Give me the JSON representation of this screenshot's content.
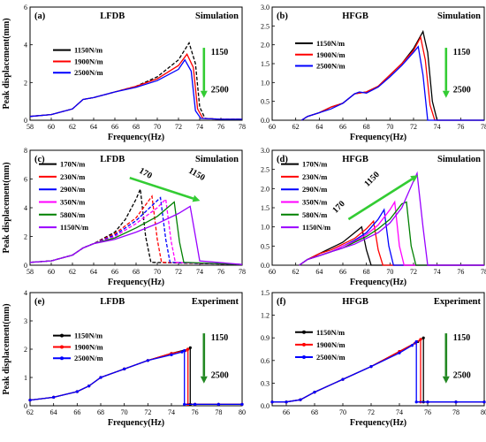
{
  "chart_data": [
    {
      "type": "line",
      "panel": "(a)",
      "title": "LFDB",
      "subtitle": "Simulation",
      "xlabel": "Frequency(Hz)",
      "ylabel": "Peak displacement(mm)",
      "xlim": [
        58,
        78
      ],
      "ylim": [
        0,
        6
      ],
      "xticks": [
        "58",
        "60",
        "62",
        "64",
        "66",
        "68",
        "70",
        "72",
        "74",
        "76",
        "78"
      ],
      "yticks": [
        "0",
        "2",
        "4",
        "6"
      ],
      "legend_position": "left",
      "arrow": {
        "from": "1150",
        "to": "2500",
        "color": "#33cc33",
        "direction": "down"
      },
      "series": [
        {
          "name": "1150N/m",
          "color": "#000000",
          "dash": "4,2",
          "x": [
            58,
            60,
            62,
            63,
            64,
            66,
            68,
            70,
            72,
            73,
            73.6,
            74,
            74.5,
            76,
            78
          ],
          "y": [
            0.2,
            0.3,
            0.6,
            1.1,
            1.2,
            1.5,
            1.8,
            2.3,
            3.2,
            4.1,
            3.0,
            0.7,
            0.1,
            0.05,
            0.05
          ]
        },
        {
          "name": "1900N/m",
          "color": "#ff0000",
          "dash": "",
          "x": [
            58,
            60,
            62,
            63,
            64,
            66,
            68,
            70,
            72,
            72.8,
            73.4,
            73.8,
            74.3,
            76,
            78
          ],
          "y": [
            0.2,
            0.3,
            0.6,
            1.1,
            1.2,
            1.5,
            1.8,
            2.2,
            2.9,
            3.5,
            2.8,
            0.6,
            0.1,
            0.05,
            0.05
          ]
        },
        {
          "name": "2500N/m",
          "color": "#0000ff",
          "dash": "",
          "x": [
            58,
            60,
            62,
            63,
            64,
            66,
            68,
            70,
            72,
            72.6,
            73.2,
            73.6,
            74.1,
            76,
            78
          ],
          "y": [
            0.2,
            0.3,
            0.6,
            1.1,
            1.2,
            1.5,
            1.75,
            2.1,
            2.7,
            3.2,
            2.6,
            0.5,
            0.1,
            0.05,
            0.05
          ]
        }
      ]
    },
    {
      "type": "line",
      "panel": "(b)",
      "title": "HFGB",
      "subtitle": "Simulation",
      "xlabel": "Frequency(Hz)",
      "ylabel": "",
      "xlim": [
        60,
        78
      ],
      "ylim": [
        0,
        3
      ],
      "xticks": [
        "60",
        "62",
        "64",
        "66",
        "68",
        "70",
        "72",
        "74",
        "76",
        "78"
      ],
      "yticks": [
        "0.0",
        "0.5",
        "1.0",
        "1.5",
        "2.0",
        "2.5",
        "3.0"
      ],
      "legend_position": "left",
      "arrow": {
        "from": "1150",
        "to": "2500",
        "color": "#33cc33",
        "direction": "down"
      },
      "series": [
        {
          "name": "1150N/m",
          "color": "#000000",
          "dash": "",
          "x": [
            62.5,
            63,
            64,
            65,
            66,
            67,
            68,
            69,
            70,
            71,
            72,
            72.8,
            73.2,
            73.6,
            74,
            78
          ],
          "y": [
            0,
            0.1,
            0.2,
            0.35,
            0.45,
            0.7,
            0.75,
            0.9,
            1.2,
            1.5,
            1.9,
            2.35,
            1.8,
            0.5,
            0,
            0
          ]
        },
        {
          "name": "1900N/m",
          "color": "#ff0000",
          "dash": "",
          "x": [
            62.5,
            63,
            64,
            65,
            66,
            67,
            68,
            69,
            70,
            71,
            72,
            72.6,
            73,
            73.4,
            73.8,
            78
          ],
          "y": [
            0,
            0.1,
            0.2,
            0.35,
            0.45,
            0.7,
            0.75,
            0.9,
            1.2,
            1.5,
            1.85,
            2.2,
            1.6,
            0.4,
            0,
            0
          ]
        },
        {
          "name": "2500N/m",
          "color": "#0000ff",
          "dash": "",
          "x": [
            62.5,
            63,
            64,
            65,
            66,
            67,
            67.4,
            68,
            69,
            70,
            71,
            72,
            72.4,
            72.8,
            73.2,
            78
          ],
          "y": [
            0,
            0.1,
            0.2,
            0.3,
            0.45,
            0.7,
            0.75,
            0.72,
            0.88,
            1.15,
            1.45,
            1.8,
            1.95,
            1.2,
            0,
            0
          ]
        }
      ]
    },
    {
      "type": "line",
      "panel": "(c)",
      "title": "LFDB",
      "subtitle": "Simulation",
      "xlabel": "Frequency(Hz)",
      "ylabel": "Peak displacement(mm)",
      "xlim": [
        58,
        78
      ],
      "ylim": [
        0,
        8
      ],
      "xticks": [
        "58",
        "60",
        "62",
        "64",
        "66",
        "68",
        "70",
        "72",
        "74",
        "76",
        "78"
      ],
      "yticks": [
        "0",
        "2",
        "4",
        "6",
        "8"
      ],
      "legend_position": "left",
      "arrow": {
        "from": "170",
        "to": "1150",
        "color": "#33cc33",
        "direction": "right"
      },
      "series": [
        {
          "name": "170N/m",
          "color": "#000000",
          "dash": "4,2",
          "x": [
            58,
            60,
            62,
            63,
            64,
            66,
            67,
            68,
            68.4,
            68.9,
            69.4,
            78
          ],
          "y": [
            0.2,
            0.3,
            0.7,
            1.2,
            1.5,
            2.3,
            3.2,
            4.6,
            5.3,
            2.0,
            0.2,
            0.05
          ]
        },
        {
          "name": "230N/m",
          "color": "#ff0000",
          "dash": "4,2",
          "x": [
            58,
            60,
            62,
            63,
            64,
            66,
            68,
            69,
            69.5,
            70,
            70.4,
            78
          ],
          "y": [
            0.2,
            0.3,
            0.7,
            1.2,
            1.5,
            2.2,
            3.3,
            4.3,
            4.8,
            1.8,
            0.2,
            0.05
          ]
        },
        {
          "name": "290N/m",
          "color": "#0000ff",
          "dash": "4,2",
          "x": [
            58,
            60,
            62,
            63,
            64,
            66,
            68,
            70,
            70.3,
            70.8,
            71.2,
            78
          ],
          "y": [
            0.2,
            0.3,
            0.7,
            1.2,
            1.5,
            2.1,
            3.1,
            4.5,
            4.7,
            1.8,
            0.2,
            0.05
          ]
        },
        {
          "name": "350N/m",
          "color": "#ff00ff",
          "dash": "4,2",
          "x": [
            58,
            60,
            62,
            63,
            64,
            66,
            68,
            70,
            70.8,
            71.3,
            71.7,
            78
          ],
          "y": [
            0.2,
            0.3,
            0.7,
            1.2,
            1.5,
            2.0,
            2.9,
            4.0,
            4.6,
            1.7,
            0.2,
            0.05
          ]
        },
        {
          "name": "580N/m",
          "color": "#008000",
          "dash": "",
          "x": [
            58,
            60,
            62,
            63,
            64,
            66,
            68,
            70,
            71.6,
            72.1,
            72.5,
            78
          ],
          "y": [
            0.2,
            0.3,
            0.7,
            1.2,
            1.5,
            1.9,
            2.6,
            3.4,
            4.4,
            1.6,
            0.2,
            0.05
          ]
        },
        {
          "name": "1150N/m",
          "color": "#9900ff",
          "dash": "",
          "x": [
            58,
            60,
            62,
            63,
            64,
            66,
            68,
            70,
            72,
            73.1,
            73.6,
            74,
            78
          ],
          "y": [
            0.2,
            0.3,
            0.7,
            1.2,
            1.5,
            1.8,
            2.3,
            2.9,
            3.6,
            4.1,
            2.0,
            0.3,
            0.05
          ]
        }
      ]
    },
    {
      "type": "line",
      "panel": "(d)",
      "title": "HFGB",
      "subtitle": "Simulation",
      "xlabel": "Frequency(Hz)",
      "ylabel": "",
      "xlim": [
        60,
        78
      ],
      "ylim": [
        0,
        3
      ],
      "xticks": [
        "60",
        "62",
        "64",
        "66",
        "68",
        "70",
        "72",
        "74",
        "76",
        "78"
      ],
      "yticks": [
        "0.0",
        "0.5",
        "1.0",
        "1.5",
        "2.0",
        "2.5",
        "3.0"
      ],
      "legend_position": "left",
      "arrow": {
        "from": "170",
        "to": "1150",
        "color": "#33cc33",
        "direction": "up-right"
      },
      "series": [
        {
          "name": "170N/m",
          "color": "#000000",
          "dash": "",
          "x": [
            62.3,
            63,
            64,
            65,
            66,
            67,
            67.6,
            68,
            68.4,
            78
          ],
          "y": [
            0,
            0.15,
            0.3,
            0.45,
            0.6,
            0.85,
            1.0,
            0.4,
            0,
            0
          ]
        },
        {
          "name": "230N/m",
          "color": "#ff0000",
          "dash": "",
          "x": [
            62.3,
            63,
            64,
            65,
            66,
            67,
            68,
            68.6,
            69,
            69.4,
            78
          ],
          "y": [
            0,
            0.15,
            0.3,
            0.4,
            0.55,
            0.7,
            0.95,
            1.15,
            0.4,
            0,
            0
          ]
        },
        {
          "name": "290N/m",
          "color": "#0000ff",
          "dash": "",
          "x": [
            62.3,
            63,
            64,
            65,
            66,
            67,
            68,
            69,
            69.5,
            69.9,
            70.3,
            78
          ],
          "y": [
            0,
            0.15,
            0.25,
            0.35,
            0.5,
            0.65,
            0.85,
            1.2,
            1.45,
            0.5,
            0,
            0
          ]
        },
        {
          "name": "350N/m",
          "color": "#ff00ff",
          "dash": "",
          "x": [
            62.3,
            63,
            64,
            65,
            66,
            67,
            68,
            69,
            70,
            70.4,
            70.8,
            71.2,
            78
          ],
          "y": [
            0,
            0.15,
            0.25,
            0.35,
            0.5,
            0.62,
            0.8,
            1.05,
            1.45,
            1.65,
            0.5,
            0,
            0
          ]
        },
        {
          "name": "580N/m",
          "color": "#008000",
          "dash": "",
          "x": [
            62.3,
            63,
            64,
            65,
            66,
            67,
            68,
            69,
            70,
            71,
            71.4,
            71.8,
            72.2,
            78
          ],
          "y": [
            0,
            0.15,
            0.25,
            0.35,
            0.45,
            0.6,
            0.75,
            0.95,
            1.2,
            1.6,
            1.65,
            0.5,
            0,
            0
          ]
        },
        {
          "name": "1150N/m",
          "color": "#9900ff",
          "dash": "",
          "x": [
            62.3,
            63,
            64,
            65,
            66,
            67,
            68,
            69,
            70,
            71,
            72,
            72.3,
            72.8,
            73.2,
            78
          ],
          "y": [
            0,
            0.15,
            0.25,
            0.35,
            0.45,
            0.55,
            0.7,
            0.85,
            1.1,
            1.5,
            2.2,
            2.4,
            1.0,
            0,
            0
          ]
        }
      ]
    },
    {
      "type": "line",
      "panel": "(e)",
      "title": "LFDB",
      "subtitle": "Experiment",
      "xlabel": "Frequency(Hz)",
      "ylabel": "Peak displacement(mm)",
      "xlim": [
        62,
        80
      ],
      "ylim": [
        0,
        4
      ],
      "xticks": [
        "62",
        "64",
        "66",
        "68",
        "70",
        "72",
        "74",
        "76",
        "78",
        "80"
      ],
      "yticks": [
        "0",
        "1",
        "2",
        "3",
        "4"
      ],
      "legend_position": "left",
      "arrow": {
        "from": "1150",
        "to": "2500",
        "color": "#228822",
        "direction": "down"
      },
      "series": [
        {
          "name": "1150N/m",
          "color": "#000000",
          "dash": "",
          "markers": true,
          "x": [
            62,
            64,
            66,
            67,
            68,
            70,
            72,
            74,
            75.4,
            75.6,
            75.6,
            76,
            78,
            80
          ],
          "y": [
            0.2,
            0.3,
            0.5,
            0.7,
            1.0,
            1.3,
            1.6,
            1.85,
            2.0,
            2.05,
            0.05,
            0.05,
            0.05,
            0.05
          ]
        },
        {
          "name": "1900N/m",
          "color": "#ff0000",
          "dash": "",
          "markers": true,
          "x": [
            62,
            64,
            66,
            67,
            68,
            70,
            72,
            74,
            75.2,
            75.4,
            75.4,
            76,
            78,
            80
          ],
          "y": [
            0.2,
            0.3,
            0.5,
            0.7,
            1.0,
            1.3,
            1.6,
            1.85,
            1.95,
            2.0,
            0.05,
            0.05,
            0.05,
            0.05
          ]
        },
        {
          "name": "2500N/m",
          "color": "#0000ff",
          "dash": "",
          "markers": true,
          "x": [
            62,
            64,
            66,
            67,
            68,
            70,
            72,
            74,
            74.9,
            75.1,
            75.1,
            76,
            78,
            80
          ],
          "y": [
            0.2,
            0.3,
            0.5,
            0.7,
            1.0,
            1.3,
            1.6,
            1.8,
            1.9,
            1.95,
            0.05,
            0.05,
            0.05,
            0.05
          ]
        }
      ]
    },
    {
      "type": "line",
      "panel": "(f)",
      "title": "HFGB",
      "subtitle": "Experiment",
      "xlabel": "Frequency(Hz)",
      "ylabel": "",
      "xlim": [
        65,
        80
      ],
      "ylim": [
        0,
        1.5
      ],
      "xticks": [
        "66",
        "68",
        "70",
        "72",
        "74",
        "76",
        "78",
        "80"
      ],
      "yticks": [
        "0.0",
        "0.3",
        "0.6",
        "0.9",
        "1.2",
        "1.5"
      ],
      "legend_position": "left",
      "arrow": {
        "from": "1150",
        "to": "2500",
        "color": "#228822",
        "direction": "down"
      },
      "series": [
        {
          "name": "1150N/m",
          "color": "#000000",
          "dash": "",
          "markers": true,
          "x": [
            65,
            66,
            67,
            68,
            70,
            72,
            74,
            75.3,
            75.7,
            75.7,
            76,
            78,
            80
          ],
          "y": [
            0.05,
            0.05,
            0.08,
            0.18,
            0.35,
            0.52,
            0.72,
            0.85,
            0.9,
            0.05,
            0.05,
            0.05,
            0.05
          ]
        },
        {
          "name": "1900N/m",
          "color": "#ff0000",
          "dash": "",
          "markers": true,
          "x": [
            65,
            66,
            67,
            68,
            70,
            72,
            74,
            75.1,
            75.5,
            75.5,
            76,
            78,
            80
          ],
          "y": [
            0.05,
            0.05,
            0.08,
            0.18,
            0.35,
            0.52,
            0.72,
            0.83,
            0.88,
            0.05,
            0.05,
            0.05,
            0.05
          ]
        },
        {
          "name": "2500N/m",
          "color": "#0000ff",
          "dash": "",
          "markers": true,
          "x": [
            65,
            66,
            67,
            68,
            70,
            72,
            74,
            74.9,
            75.2,
            75.2,
            76,
            78,
            80
          ],
          "y": [
            0.05,
            0.05,
            0.08,
            0.18,
            0.35,
            0.52,
            0.7,
            0.8,
            0.85,
            0.05,
            0.05,
            0.05,
            0.05
          ]
        }
      ]
    }
  ]
}
